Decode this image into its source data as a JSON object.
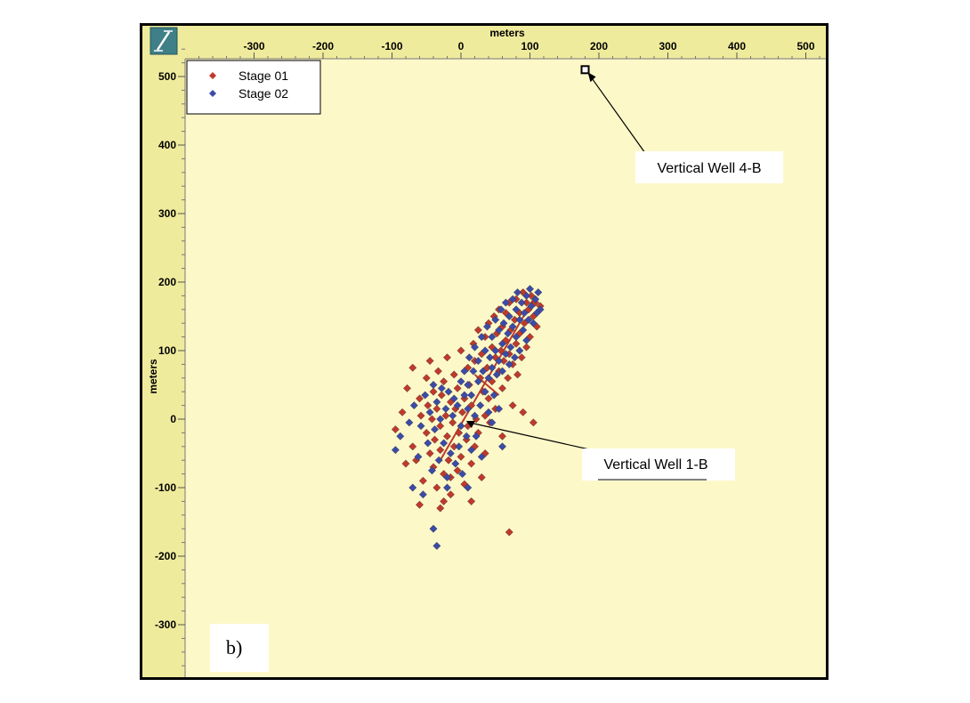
{
  "chart_data": {
    "type": "scatter",
    "xlabel": "meters",
    "ylabel": "meters",
    "xlim": [
      -390,
      520
    ],
    "ylim": [
      -380,
      550
    ],
    "x_ticks": [
      -300,
      -200,
      -100,
      0,
      100,
      200,
      300,
      400,
      500
    ],
    "y_ticks": [
      500,
      400,
      300,
      200,
      100,
      0,
      -100,
      -200,
      -300
    ],
    "x_tick_labels": [
      "-300",
      "-200",
      "-100",
      "0",
      "100",
      "200",
      "300",
      "400",
      "500"
    ],
    "y_tick_labels": [
      "500",
      "400",
      "300",
      "200",
      "100",
      "0",
      "-100",
      "-200",
      "-300"
    ],
    "grid": false,
    "legend_position": "top-left",
    "panel_label": "b)",
    "series": [
      {
        "name": "Stage 01",
        "color": "#c0392b",
        "marker": "diamond",
        "points": [
          [
            -95,
            -15
          ],
          [
            -85,
            10
          ],
          [
            -78,
            45
          ],
          [
            -70,
            -40
          ],
          [
            -65,
            -60
          ],
          [
            -60,
            30
          ],
          [
            -58,
            5
          ],
          [
            -55,
            -90
          ],
          [
            -50,
            -20
          ],
          [
            -50,
            60
          ],
          [
            -48,
            20
          ],
          [
            -45,
            -50
          ],
          [
            -45,
            85
          ],
          [
            -42,
            0
          ],
          [
            -40,
            -70
          ],
          [
            -40,
            40
          ],
          [
            -38,
            -30
          ],
          [
            -35,
            15
          ],
          [
            -35,
            -100
          ],
          [
            -33,
            70
          ],
          [
            -30,
            -10
          ],
          [
            -30,
            -45
          ],
          [
            -28,
            35
          ],
          [
            -25,
            -80
          ],
          [
            -25,
            55
          ],
          [
            -22,
            5
          ],
          [
            -20,
            -25
          ],
          [
            -20,
            90
          ],
          [
            -18,
            -60
          ],
          [
            -15,
            25
          ],
          [
            -15,
            -110
          ],
          [
            -12,
            -5
          ],
          [
            -10,
            65
          ],
          [
            -10,
            -40
          ],
          [
            -8,
            15
          ],
          [
            -5,
            -75
          ],
          [
            -5,
            45
          ],
          [
            -3,
            -20
          ],
          [
            0,
            100
          ],
          [
            0,
            -55
          ],
          [
            2,
            10
          ],
          [
            5,
            -95
          ],
          [
            5,
            30
          ],
          [
            8,
            -30
          ],
          [
            10,
            75
          ],
          [
            10,
            -10
          ],
          [
            12,
            50
          ],
          [
            15,
            -65
          ],
          [
            15,
            20
          ],
          [
            18,
            110
          ],
          [
            20,
            -40
          ],
          [
            20,
            85
          ],
          [
            22,
            0
          ],
          [
            25,
            130
          ],
          [
            25,
            -20
          ],
          [
            28,
            60
          ],
          [
            30,
            95
          ],
          [
            30,
            -85
          ],
          [
            32,
            40
          ],
          [
            35,
            120
          ],
          [
            35,
            5
          ],
          [
            38,
            75
          ],
          [
            40,
            140
          ],
          [
            40,
            30
          ],
          [
            42,
            -5
          ],
          [
            45,
            105
          ],
          [
            45,
            55
          ],
          [
            48,
            150
          ],
          [
            50,
            90
          ],
          [
            50,
            15
          ],
          [
            52,
            125
          ],
          [
            55,
            70
          ],
          [
            55,
            160
          ],
          [
            58,
            100
          ],
          [
            60,
            45
          ],
          [
            60,
            135
          ],
          [
            62,
            85
          ],
          [
            65,
            155
          ],
          [
            65,
            115
          ],
          [
            68,
            60
          ],
          [
            70,
            170
          ],
          [
            70,
            95
          ],
          [
            72,
            130
          ],
          [
            75,
            20
          ],
          [
            75,
            80
          ],
          [
            78,
            145
          ],
          [
            80,
            110
          ],
          [
            80,
            175
          ],
          [
            82,
            65
          ],
          [
            85,
            125
          ],
          [
            85,
            155
          ],
          [
            88,
            90
          ],
          [
            90,
            185
          ],
          [
            92,
            140
          ],
          [
            95,
            105
          ],
          [
            95,
            170
          ],
          [
            98,
            160
          ],
          [
            100,
            120
          ],
          [
            102,
            180
          ],
          [
            105,
            150
          ],
          [
            108,
            170
          ],
          [
            110,
            135
          ],
          [
            105,
            -5
          ],
          [
            90,
            10
          ],
          [
            115,
            165
          ],
          [
            -60,
            -125
          ],
          [
            -30,
            -130
          ],
          [
            70,
            -165
          ],
          [
            -80,
            -65
          ],
          [
            -70,
            75
          ],
          [
            -25,
            -120
          ],
          [
            15,
            -120
          ],
          [
            35,
            -50
          ],
          [
            60,
            -25
          ],
          [
            -15,
            -85
          ]
        ]
      },
      {
        "name": "Stage 02",
        "color": "#3b4ba8",
        "marker": "diamond",
        "points": [
          [
            -88,
            -25
          ],
          [
            -75,
            -5
          ],
          [
            -68,
            20
          ],
          [
            -62,
            -55
          ],
          [
            -58,
            -10
          ],
          [
            -52,
            35
          ],
          [
            -48,
            -35
          ],
          [
            -45,
            10
          ],
          [
            -42,
            -75
          ],
          [
            -40,
            50
          ],
          [
            -38,
            -15
          ],
          [
            -35,
            25
          ],
          [
            -32,
            -60
          ],
          [
            -30,
            0
          ],
          [
            -28,
            45
          ],
          [
            -25,
            -35
          ],
          [
            -22,
            15
          ],
          [
            -20,
            -85
          ],
          [
            -18,
            40
          ],
          [
            -15,
            -50
          ],
          [
            -12,
            5
          ],
          [
            -10,
            30
          ],
          [
            -8,
            -65
          ],
          [
            -5,
            20
          ],
          [
            -3,
            -40
          ],
          [
            0,
            55
          ],
          [
            0,
            -10
          ],
          [
            2,
            -80
          ],
          [
            5,
            35
          ],
          [
            5,
            70
          ],
          [
            8,
            -25
          ],
          [
            10,
            50
          ],
          [
            10,
            15
          ],
          [
            12,
            90
          ],
          [
            15,
            -45
          ],
          [
            15,
            35
          ],
          [
            18,
            70
          ],
          [
            20,
            5
          ],
          [
            20,
            105
          ],
          [
            22,
            -25
          ],
          [
            25,
            55
          ],
          [
            25,
            85
          ],
          [
            28,
            20
          ],
          [
            30,
            120
          ],
          [
            30,
            -55
          ],
          [
            32,
            70
          ],
          [
            35,
            40
          ],
          [
            35,
            100
          ],
          [
            38,
            135
          ],
          [
            40,
            60
          ],
          [
            40,
            10
          ],
          [
            42,
            90
          ],
          [
            45,
            120
          ],
          [
            45,
            75
          ],
          [
            48,
            35
          ],
          [
            50,
            145
          ],
          [
            50,
            100
          ],
          [
            52,
            65
          ],
          [
            55,
            130
          ],
          [
            55,
            85
          ],
          [
            58,
            160
          ],
          [
            60,
            110
          ],
          [
            60,
            70
          ],
          [
            62,
            140
          ],
          [
            65,
            95
          ],
          [
            65,
            170
          ],
          [
            68,
            125
          ],
          [
            70,
            80
          ],
          [
            70,
            150
          ],
          [
            72,
            105
          ],
          [
            75,
            175
          ],
          [
            75,
            135
          ],
          [
            78,
            90
          ],
          [
            80,
            160
          ],
          [
            80,
            120
          ],
          [
            82,
            185
          ],
          [
            85,
            145
          ],
          [
            85,
            100
          ],
          [
            88,
            170
          ],
          [
            90,
            130
          ],
          [
            92,
            155
          ],
          [
            95,
            180
          ],
          [
            95,
            115
          ],
          [
            98,
            145
          ],
          [
            100,
            190
          ],
          [
            102,
            165
          ],
          [
            105,
            140
          ],
          [
            108,
            175
          ],
          [
            110,
            155
          ],
          [
            112,
            185
          ],
          [
            115,
            160
          ],
          [
            -95,
            -45
          ],
          [
            -55,
            -110
          ],
          [
            -20,
            -100
          ],
          [
            10,
            -100
          ],
          [
            -40,
            -160
          ],
          [
            -35,
            -185
          ],
          [
            -70,
            -100
          ],
          [
            45,
            -5
          ],
          [
            55,
            15
          ],
          [
            60,
            -40
          ]
        ]
      }
    ],
    "annotations": [
      {
        "text": "Vertical Well 4-B",
        "point": [
          180,
          510
        ],
        "marker": "square"
      },
      {
        "text": "Vertical Well 1-B",
        "point": [
          5,
          0
        ],
        "marker": "star"
      }
    ],
    "trend_line": {
      "color": "#c0392b",
      "from": [
        -30,
        -60
      ],
      "to": [
        105,
        175
      ]
    }
  }
}
